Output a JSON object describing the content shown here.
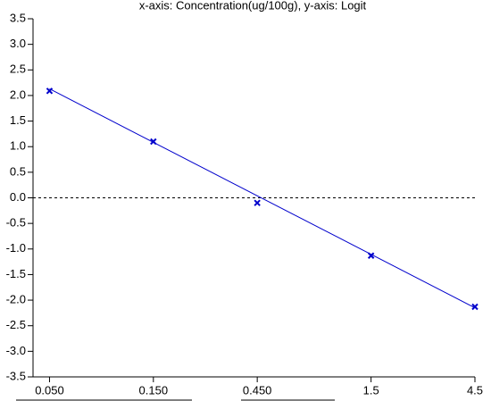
{
  "chart_data": {
    "type": "scatter",
    "title": "x-axis: Concentration(ug/100g), y-axis: Logit",
    "x": [
      0.05,
      0.15,
      0.45,
      1.5,
      4.5
    ],
    "series": [
      {
        "type": "scatter",
        "marker": "x",
        "color": "#0000cc",
        "values": [
          2.09,
          1.1,
          -0.1,
          -1.13,
          -2.13
        ]
      },
      {
        "type": "line",
        "color": "#0000cc",
        "x": [
          0.05,
          4.5
        ],
        "values": [
          2.13,
          -2.15
        ]
      }
    ],
    "xscale": "log",
    "xlim": [
      0.042,
      4.5
    ],
    "xticks": [
      {
        "value": 0.05,
        "label": "0.050"
      },
      {
        "value": 0.15,
        "label": "0.150"
      },
      {
        "value": 0.45,
        "label": "0.450"
      },
      1.5,
      4.5
    ],
    "ylim": [
      -3.5,
      3.5
    ],
    "yticks": [
      3.5,
      {
        "value": 3,
        "label": "3.0"
      },
      2.5,
      {
        "value": 2,
        "label": "2.0"
      },
      1.5,
      {
        "value": 1,
        "label": "1.0"
      },
      0.5,
      {
        "value": 0,
        "label": "0.0"
      },
      -0.5,
      {
        "value": -1,
        "label": "-1.0"
      },
      -1.5,
      {
        "value": -2,
        "label": "-2.0"
      },
      -2.5,
      {
        "value": -3,
        "label": "-3.0"
      },
      -3.5
    ],
    "reference_line": {
      "y": 0,
      "style": "dashed"
    }
  }
}
